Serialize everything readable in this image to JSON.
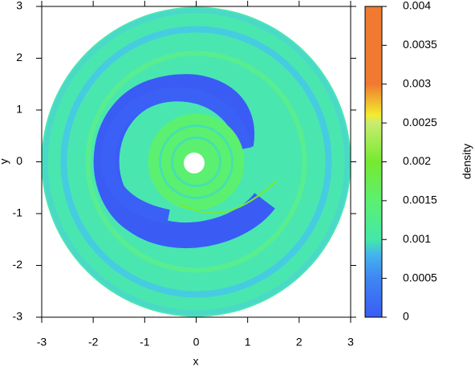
{
  "chart_data": {
    "type": "image",
    "xlabel": "x",
    "ylabel": "y",
    "xlim": [
      -3,
      3
    ],
    "ylim": [
      -3,
      3
    ],
    "xticks": [
      -3,
      -2,
      -1,
      0,
      1,
      2,
      3
    ],
    "yticks": [
      -3,
      -2,
      -1,
      0,
      1,
      2,
      3
    ],
    "colorbar": {
      "label": "density",
      "lim": [
        0,
        0.004
      ],
      "ticks": [
        0,
        0.0005,
        0.001,
        0.0015,
        0.002,
        0.0025,
        0.003,
        0.0035,
        0.004
      ],
      "colormap": [
        {
          "value": 0,
          "color": "#3a5cf5"
        },
        {
          "value": 0.0005,
          "color": "#3f86f2"
        },
        {
          "value": 0.0008,
          "color": "#42b4ee"
        },
        {
          "value": 0.001,
          "color": "#44e8a8"
        },
        {
          "value": 0.0015,
          "color": "#5cf070"
        },
        {
          "value": 0.002,
          "color": "#76ea30"
        },
        {
          "value": 0.0025,
          "color": "#c8ec70"
        },
        {
          "value": 0.0026,
          "color": "#f2ec30"
        },
        {
          "value": 0.003,
          "color": "#f07a30"
        },
        {
          "value": 0.004,
          "color": "#f07a30"
        }
      ]
    }
  }
}
